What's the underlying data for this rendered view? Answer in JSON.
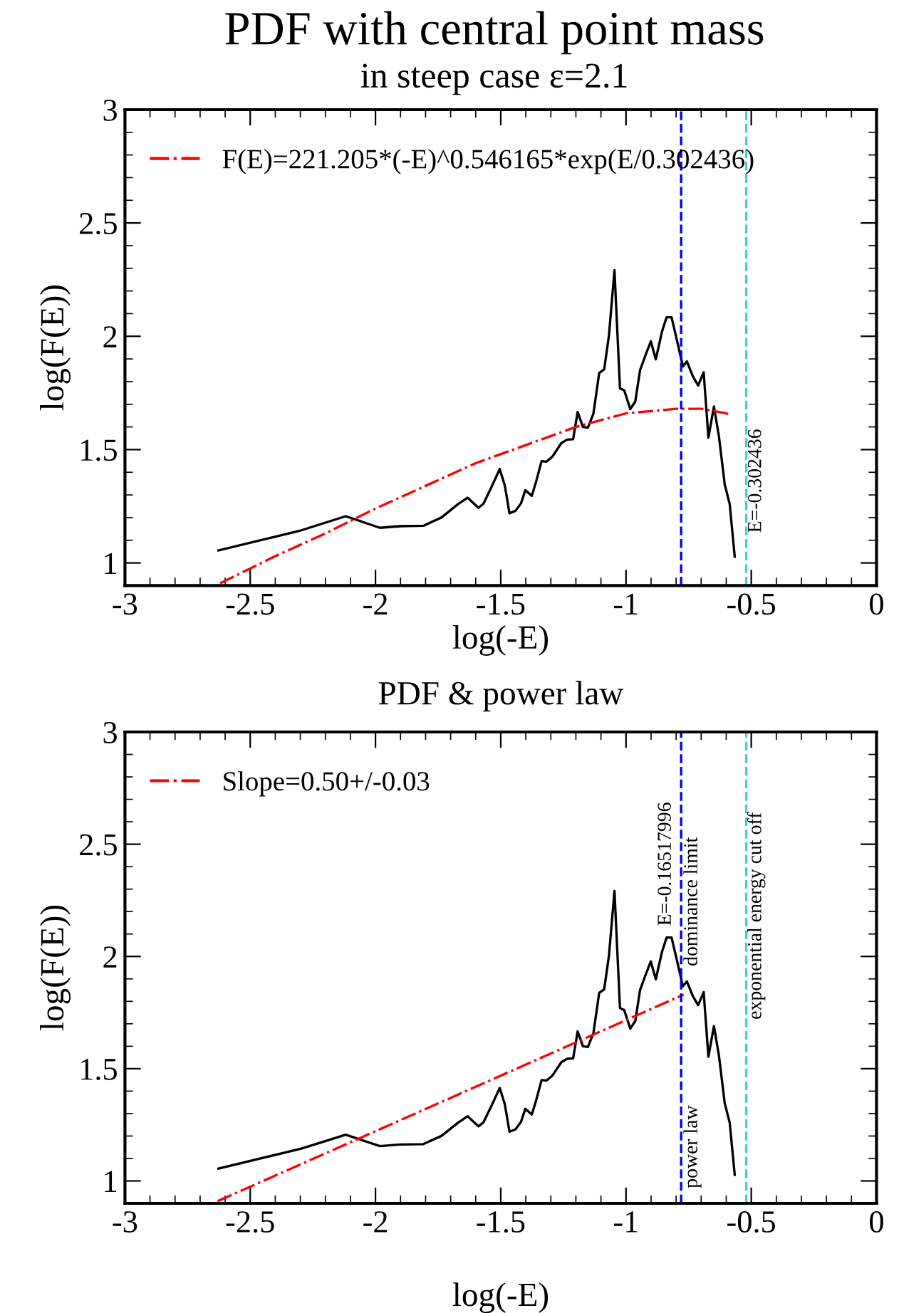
{
  "chart_data": [
    {
      "type": "line",
      "title": "PDF with central point mass",
      "subtitle": "in steep case ε=2.1",
      "xlabel": "log(-E)",
      "ylabel": "log(F(E))",
      "xlim": [
        -3,
        0
      ],
      "ylim": [
        0.9,
        3
      ],
      "xticks": [
        -3,
        -2.5,
        -2,
        -1.5,
        -1,
        -0.5,
        0
      ],
      "yticks": [
        1,
        1.5,
        2,
        2.5,
        3
      ],
      "grid": false,
      "legend": "top left",
      "series": [
        {
          "color": "#000000",
          "line_style": "solid",
          "x": [
            -2.627,
            -2.296,
            -2.119,
            -1.982,
            -1.903,
            -1.809,
            -1.736,
            -1.671,
            -1.632,
            -1.589,
            -1.569,
            -1.539,
            -1.504,
            -1.484,
            -1.465,
            -1.441,
            -1.419,
            -1.402,
            -1.376,
            -1.359,
            -1.337,
            -1.317,
            -1.294,
            -1.258,
            -1.235,
            -1.211,
            -1.193,
            -1.172,
            -1.152,
            -1.13,
            -1.107,
            -1.087,
            -1.068,
            -1.046,
            -1.024,
            -1.007,
            -0.983,
            -0.963,
            -0.944,
            -0.92,
            -0.901,
            -0.881,
            -0.857,
            -0.838,
            -0.818,
            -0.792,
            -0.773,
            -0.757,
            -0.733,
            -0.712,
            -0.69,
            -0.671,
            -0.649,
            -0.629,
            -0.606,
            -0.586,
            -0.566
          ],
          "values": [
            1.055,
            1.144,
            1.206,
            1.155,
            1.162,
            1.164,
            1.201,
            1.259,
            1.288,
            1.243,
            1.261,
            1.33,
            1.414,
            1.343,
            1.219,
            1.23,
            1.263,
            1.321,
            1.296,
            1.358,
            1.449,
            1.447,
            1.469,
            1.529,
            1.544,
            1.546,
            1.666,
            1.6,
            1.597,
            1.659,
            1.838,
            1.854,
            2.004,
            2.292,
            1.77,
            1.761,
            1.679,
            1.712,
            1.85,
            1.923,
            1.978,
            1.898,
            2.018,
            2.084,
            2.084,
            1.96,
            1.867,
            1.889,
            1.823,
            1.783,
            1.841,
            1.553,
            1.69,
            1.558,
            1.347,
            1.259,
            1.027
          ]
        },
        {
          "name": "F(E)=221.205*(-E)^0.546165*exp(E/0.302436)",
          "color": "#ff0000",
          "line_style": "dashdot",
          "x": [
            -2.62,
            -2.4,
            -2.2,
            -2.0,
            -1.8,
            -1.6,
            -1.4,
            -1.2,
            -1.0,
            -0.9,
            -0.8,
            -0.7,
            -0.6,
            -0.586
          ],
          "values": [
            0.91,
            1.03,
            1.13,
            1.24,
            1.34,
            1.44,
            1.52,
            1.6,
            1.66,
            1.67,
            1.68,
            1.68,
            1.66,
            1.65
          ]
        }
      ],
      "ref_lines": [
        {
          "axis": "x",
          "value": -0.78,
          "label": null,
          "color": "#0000ff",
          "line_style": "dashed"
        },
        {
          "axis": "x",
          "value": -0.52,
          "label": null,
          "color": "#40d0d0",
          "line_style": "dashed"
        }
      ],
      "annotations": [
        "E=-0.302436"
      ]
    },
    {
      "type": "line",
      "title": "PDF & power law",
      "xlabel": "log(-E)",
      "ylabel": "log(F(E))",
      "xlim": [
        -3,
        0
      ],
      "ylim": [
        0.9,
        3
      ],
      "xticks": [
        -3,
        -2.5,
        -2,
        -1.5,
        -1,
        -0.5,
        0
      ],
      "yticks": [
        1,
        1.5,
        2,
        2.5,
        3
      ],
      "grid": false,
      "legend": "top left",
      "series": [
        {
          "color": "#000000",
          "line_style": "solid",
          "x": [
            -2.627,
            -2.296,
            -2.119,
            -1.982,
            -1.903,
            -1.809,
            -1.736,
            -1.671,
            -1.632,
            -1.589,
            -1.569,
            -1.539,
            -1.504,
            -1.484,
            -1.465,
            -1.441,
            -1.419,
            -1.402,
            -1.376,
            -1.359,
            -1.337,
            -1.317,
            -1.294,
            -1.258,
            -1.235,
            -1.211,
            -1.193,
            -1.172,
            -1.152,
            -1.13,
            -1.107,
            -1.087,
            -1.068,
            -1.046,
            -1.024,
            -1.007,
            -0.983,
            -0.963,
            -0.944,
            -0.92,
            -0.901,
            -0.881,
            -0.857,
            -0.838,
            -0.818,
            -0.792,
            -0.773,
            -0.757,
            -0.733,
            -0.712,
            -0.69,
            -0.671,
            -0.649,
            -0.629,
            -0.606,
            -0.586,
            -0.566
          ],
          "values": [
            1.055,
            1.144,
            1.206,
            1.155,
            1.162,
            1.164,
            1.201,
            1.259,
            1.288,
            1.243,
            1.261,
            1.33,
            1.414,
            1.343,
            1.219,
            1.23,
            1.263,
            1.321,
            1.296,
            1.358,
            1.449,
            1.447,
            1.469,
            1.529,
            1.544,
            1.546,
            1.666,
            1.6,
            1.597,
            1.659,
            1.838,
            1.854,
            2.004,
            2.292,
            1.77,
            1.761,
            1.679,
            1.712,
            1.85,
            1.923,
            1.978,
            1.898,
            2.018,
            2.084,
            2.084,
            1.96,
            1.867,
            1.889,
            1.823,
            1.783,
            1.841,
            1.553,
            1.69,
            1.558,
            1.347,
            1.259,
            1.027
          ]
        },
        {
          "name": "Slope=0.50+/-0.03",
          "color": "#ff0000",
          "line_style": "dashdot",
          "x": [
            -2.63,
            -0.77
          ],
          "values": [
            0.91,
            1.83
          ]
        }
      ],
      "ref_lines": [
        {
          "axis": "x",
          "value": -0.78,
          "label": null,
          "color": "#0000ff",
          "line_style": "dashed"
        },
        {
          "axis": "x",
          "value": -0.52,
          "label": null,
          "color": "#40d0d0",
          "line_style": "dashed"
        }
      ],
      "annotations": [
        "E=-0.16517996",
        "dominance limit",
        "power law",
        "exponential energy cut off"
      ]
    }
  ]
}
